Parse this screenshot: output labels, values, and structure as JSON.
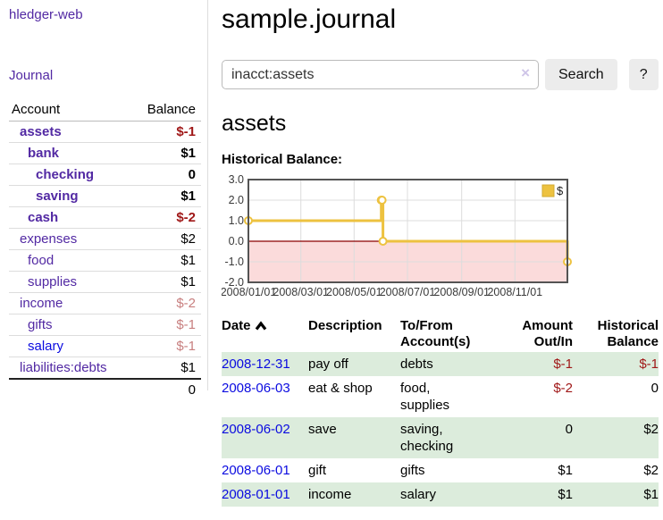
{
  "sidebar": {
    "brand": "hledger-web",
    "nav": {
      "journal_label": "Journal"
    },
    "accounts": {
      "col_account": "Account",
      "col_balance": "Balance",
      "rows": [
        {
          "name": "assets",
          "depth": 1,
          "balance": "$-1",
          "in_query": true,
          "negative": "strong"
        },
        {
          "name": "bank",
          "depth": 2,
          "balance": "$1",
          "in_query": true
        },
        {
          "name": "checking",
          "depth": 3,
          "balance": "0",
          "in_query": true
        },
        {
          "name": "saving",
          "depth": 3,
          "balance": "$1",
          "in_query": true
        },
        {
          "name": "cash",
          "depth": 2,
          "balance": "$-2",
          "in_query": true,
          "negative": "strong"
        },
        {
          "name": "expenses",
          "depth": 1,
          "balance": "$2"
        },
        {
          "name": "food",
          "depth": 2,
          "balance": "$1"
        },
        {
          "name": "supplies",
          "depth": 2,
          "balance": "$1"
        },
        {
          "name": "income",
          "depth": 1,
          "balance": "$-2",
          "negative": "soft"
        },
        {
          "name": "gifts",
          "depth": 2,
          "balance": "$-1",
          "negative": "soft"
        },
        {
          "name": "salary",
          "depth": 2,
          "balance": "$-1",
          "negative": "soft",
          "name_color": "blue"
        },
        {
          "name": "liabilities:debts",
          "depth": 1,
          "balance": "$1"
        }
      ],
      "total": "0"
    }
  },
  "header": {
    "title": "sample.journal"
  },
  "search": {
    "query": "inacct:assets",
    "clear_icon": "×",
    "search_label": "Search",
    "help_label": "?"
  },
  "register": {
    "heading": "assets",
    "chart_title": "Historical Balance:",
    "table": {
      "columns": [
        "Date",
        "Description",
        "To/From Account(s)",
        "Amount Out/In",
        "Historical Balance"
      ],
      "rows": [
        {
          "date": "2008-12-31",
          "description": "pay off",
          "accounts": "debts",
          "amount": "$-1",
          "balance": "$-1"
        },
        {
          "date": "2008-06-03",
          "description": "eat & shop",
          "accounts": "food, supplies",
          "amount": "$-2",
          "balance": "0"
        },
        {
          "date": "2008-06-02",
          "description": "save",
          "accounts": "saving, checking",
          "amount": "0",
          "balance": "$2"
        },
        {
          "date": "2008-06-01",
          "description": "gift",
          "accounts": "gifts",
          "amount": "$1",
          "balance": "$2"
        },
        {
          "date": "2008-01-01",
          "description": "income",
          "accounts": "salary",
          "amount": "$1",
          "balance": "$1"
        }
      ]
    }
  },
  "chart_data": {
    "type": "line",
    "step": true,
    "title": "Historical Balance:",
    "legend": [
      {
        "label": "$",
        "color": "#EDC240"
      }
    ],
    "points": [
      {
        "date": "2008/01/01",
        "value": 1
      },
      {
        "date": "2008/06/01",
        "value": 2
      },
      {
        "date": "2008/06/02",
        "value": 2
      },
      {
        "date": "2008/06/03",
        "value": 0
      },
      {
        "date": "2008/12/31",
        "value": -1
      }
    ],
    "x_range": [
      "2008/01/01",
      "2008/12/31"
    ],
    "ylim": [
      -2,
      3
    ],
    "yticks": [
      3,
      2,
      1,
      0,
      -1,
      -2
    ],
    "ytick_labels": [
      "3.0",
      "2.0",
      "1.0",
      "0.0",
      "-1.0",
      "-2.0"
    ],
    "x_gridlines": [
      {
        "date": "2008/01/01",
        "label": "2008/01/01"
      },
      {
        "date": "2008/03/01",
        "label": "2008/03/01"
      },
      {
        "date": "2008/05/01",
        "label": "2008/05/01"
      },
      {
        "date": "2008/07/01",
        "label": "2008/07/01"
      },
      {
        "date": "2008/09/01",
        "label": "2008/09/01"
      },
      {
        "date": "2008/11/01",
        "label": "2008/11/01"
      }
    ],
    "colors": {
      "series": "#EDC240",
      "legend_border": "#d2ab30",
      "negative_region": "#fbdbdb",
      "zero_line": "#8b0000",
      "grid": "#dcdcdc",
      "border": "#545454",
      "tick_text": "#3a3a3a"
    }
  }
}
